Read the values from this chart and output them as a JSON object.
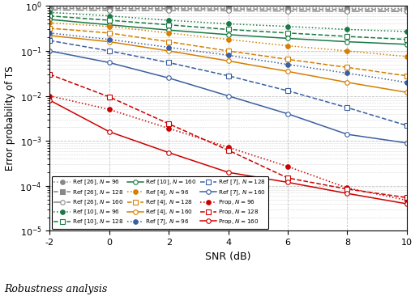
{
  "snr": [
    -2,
    0,
    2,
    4,
    6,
    8,
    10
  ],
  "series": [
    {
      "label": "Ref [26], $N = 96$",
      "color": "#888888",
      "linestyle": "dotted",
      "marker": "o",
      "markerfilled": true,
      "values": [
        0.93,
        0.92,
        0.91,
        0.9,
        0.9,
        0.89,
        0.88
      ]
    },
    {
      "label": "Ref [26], $N = 128$",
      "color": "#888888",
      "linestyle": "dashed",
      "marker": "s",
      "markerfilled": true,
      "values": [
        0.88,
        0.87,
        0.86,
        0.85,
        0.84,
        0.83,
        0.82
      ]
    },
    {
      "label": "Ref [26], $N = 160$",
      "color": "#888888",
      "linestyle": "dashdot",
      "marker": "o",
      "markerfilled": false,
      "values": [
        0.82,
        0.8,
        0.79,
        0.78,
        0.77,
        0.76,
        0.75
      ]
    },
    {
      "label": "Ref [10], $N = 96$",
      "color": "#1a7a44",
      "linestyle": "dotted",
      "marker": "o",
      "markerfilled": true,
      "values": [
        0.72,
        0.6,
        0.48,
        0.4,
        0.35,
        0.3,
        0.27
      ]
    },
    {
      "label": "Ref [10], $N = 128$",
      "color": "#1a7a44",
      "linestyle": "dashed",
      "marker": "s",
      "markerfilled": false,
      "values": [
        0.6,
        0.48,
        0.38,
        0.3,
        0.25,
        0.21,
        0.18
      ]
    },
    {
      "label": "Ref [10], $N = 160$",
      "color": "#1a7a44",
      "linestyle": "solid",
      "marker": "o",
      "markerfilled": false,
      "values": [
        0.5,
        0.38,
        0.29,
        0.23,
        0.19,
        0.16,
        0.14
      ]
    },
    {
      "label": "Ref [4], $N = 96$",
      "color": "#d48000",
      "linestyle": "dotted",
      "marker": "o",
      "markerfilled": true,
      "values": [
        0.42,
        0.35,
        0.25,
        0.18,
        0.13,
        0.1,
        0.075
      ]
    },
    {
      "label": "Ref [4], $N = 128$",
      "color": "#d48000",
      "linestyle": "dashed",
      "marker": "s",
      "markerfilled": false,
      "values": [
        0.32,
        0.25,
        0.16,
        0.1,
        0.065,
        0.043,
        0.028
      ]
    },
    {
      "label": "Ref [4], $N = 160$",
      "color": "#d48000",
      "linestyle": "solid",
      "marker": "o",
      "markerfilled": false,
      "values": [
        0.22,
        0.16,
        0.1,
        0.06,
        0.035,
        0.02,
        0.012
      ]
    },
    {
      "label": "Ref [7], $N = 96$",
      "color": "#3a5fa0",
      "linestyle": "dotted",
      "marker": "o",
      "markerfilled": true,
      "values": [
        0.25,
        0.18,
        0.12,
        0.08,
        0.05,
        0.032,
        0.02
      ]
    },
    {
      "label": "Ref [7], $N = 128$",
      "color": "#3a5fa0",
      "linestyle": "dashed",
      "marker": "s",
      "markerfilled": false,
      "values": [
        0.17,
        0.1,
        0.055,
        0.028,
        0.013,
        0.0055,
        0.0022
      ]
    },
    {
      "label": "Ref [7], $N = 160$",
      "color": "#3a5fa0",
      "linestyle": "solid",
      "marker": "o",
      "markerfilled": false,
      "values": [
        0.1,
        0.055,
        0.025,
        0.01,
        0.004,
        0.0014,
        0.0009
      ]
    },
    {
      "label": "Prop, $N = 96$",
      "color": "#cc0000",
      "linestyle": "dotted",
      "marker": "o",
      "markerfilled": true,
      "values": [
        0.01,
        0.005,
        0.0019,
        0.00072,
        0.00027,
        9e-05,
        4.8e-05
      ]
    },
    {
      "label": "Prop, $N = 128$",
      "color": "#cc0000",
      "linestyle": "dashed",
      "marker": "s",
      "markerfilled": false,
      "values": [
        0.03,
        0.0095,
        0.0024,
        0.00062,
        0.00015,
        8.5e-05,
        5.5e-05
      ]
    },
    {
      "label": "Prop, $N = 160$",
      "color": "#cc0000",
      "linestyle": "solid",
      "marker": "o",
      "markerfilled": false,
      "values": [
        0.008,
        0.0016,
        0.00055,
        0.0002,
        0.00012,
        6.8e-05,
        4e-05
      ]
    }
  ],
  "xlabel": "SNR (dB)",
  "ylabel": "Error probability of TS",
  "xlim": [
    -2,
    10
  ],
  "ylim_log": [
    -5,
    0
  ],
  "legend_cols": 3,
  "background_color": "#ffffff",
  "grid_color": "#bbbbbb"
}
